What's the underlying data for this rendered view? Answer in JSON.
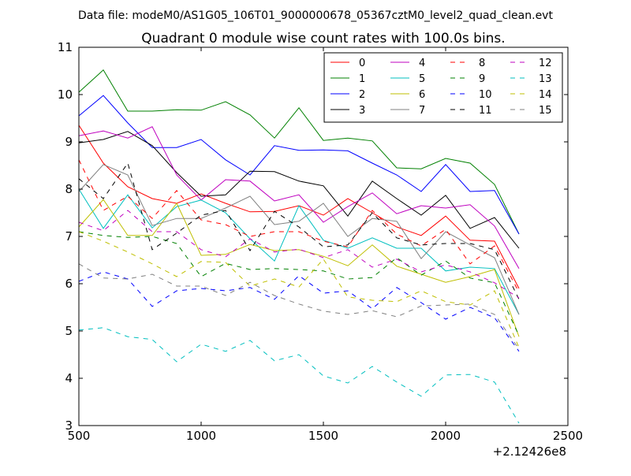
{
  "header": {
    "data_file": "Data file: modeM0/AS1G05_106T01_9000000678_05367cztM0_level2_quad_clean.evt"
  },
  "chart_data": {
    "type": "line",
    "title": "Quadrant 0 module wise count rates with 100.0s bins.",
    "xlabel": "",
    "ylabel": "",
    "x_offset_label": "+2.12426e8",
    "xlim": [
      500,
      2500
    ],
    "ylim": [
      3,
      11
    ],
    "xticks": [
      "500",
      "1000",
      "1500",
      "2000",
      "2500"
    ],
    "yticks": [
      "3",
      "4",
      "5",
      "6",
      "7",
      "8",
      "9",
      "10",
      "11"
    ],
    "grid": false,
    "legend_position": "top-right",
    "x": [
      500,
      600,
      700,
      800,
      900,
      1000,
      1100,
      1200,
      1300,
      1400,
      1500,
      1600,
      1700,
      1800,
      1900,
      2000,
      2100,
      2200,
      2300
    ],
    "series": [
      {
        "name": "0",
        "color": "#ff0000",
        "dash": "solid",
        "values": [
          9.35,
          8.55,
          8.05,
          7.8,
          7.7,
          7.9,
          7.7,
          7.52,
          7.53,
          7.65,
          7.45,
          7.8,
          7.5,
          7.2,
          7.02,
          7.43,
          6.92,
          6.9,
          5.9
        ]
      },
      {
        "name": "1",
        "color": "#008000",
        "dash": "solid",
        "values": [
          10.05,
          10.52,
          9.65,
          9.65,
          9.68,
          9.67,
          9.85,
          9.57,
          9.08,
          9.72,
          9.03,
          9.08,
          9.02,
          8.45,
          8.43,
          8.65,
          8.55,
          8.1,
          7.05
        ]
      },
      {
        "name": "2",
        "color": "#0000ff",
        "dash": "solid",
        "values": [
          9.55,
          9.98,
          9.4,
          8.88,
          8.88,
          9.05,
          8.62,
          8.3,
          8.92,
          8.82,
          8.83,
          8.81,
          8.55,
          8.3,
          7.95,
          8.52,
          7.95,
          7.97,
          7.05
        ]
      },
      {
        "name": "3",
        "color": "#000000",
        "dash": "solid",
        "values": [
          8.98,
          9.05,
          9.22,
          8.92,
          8.35,
          7.85,
          7.88,
          8.38,
          8.37,
          8.17,
          8.07,
          7.43,
          8.17,
          7.8,
          7.45,
          7.87,
          7.17,
          7.4,
          6.75
        ]
      },
      {
        "name": "4",
        "color": "#bf00bf",
        "dash": "solid",
        "values": [
          9.13,
          9.23,
          9.08,
          9.32,
          8.3,
          7.77,
          8.2,
          8.17,
          7.75,
          7.88,
          7.3,
          7.63,
          7.92,
          7.48,
          7.65,
          7.6,
          7.67,
          7.22,
          6.32
        ]
      },
      {
        "name": "5",
        "color": "#00bfbf",
        "dash": "solid",
        "values": [
          8.0,
          7.17,
          7.88,
          7.18,
          7.63,
          7.77,
          7.5,
          6.95,
          6.48,
          7.65,
          6.92,
          6.75,
          6.97,
          6.75,
          6.75,
          6.27,
          6.35,
          6.32,
          5.35
        ]
      },
      {
        "name": "6",
        "color": "#bfbf00",
        "dash": "solid",
        "values": [
          7.2,
          7.78,
          7.02,
          7.02,
          7.7,
          6.6,
          6.62,
          6.83,
          6.7,
          6.72,
          6.58,
          6.38,
          6.82,
          6.37,
          6.2,
          6.03,
          6.15,
          6.3,
          4.88
        ]
      },
      {
        "name": "7",
        "color": "#808080",
        "dash": "solid",
        "values": [
          7.95,
          8.52,
          8.3,
          7.23,
          7.38,
          7.38,
          7.6,
          7.85,
          7.25,
          7.32,
          7.7,
          7.0,
          7.38,
          7.32,
          6.53,
          7.1,
          6.82,
          6.55,
          5.35
        ]
      },
      {
        "name": "8",
        "color": "#ff0000",
        "dash": "dashed",
        "values": [
          8.62,
          7.55,
          7.85,
          7.38,
          7.97,
          7.35,
          7.25,
          7.0,
          7.1,
          7.1,
          6.9,
          6.78,
          7.55,
          7.05,
          6.8,
          7.15,
          6.42,
          6.8,
          5.82
        ]
      },
      {
        "name": "9",
        "color": "#008000",
        "dash": "dashed",
        "values": [
          7.1,
          7.02,
          6.98,
          7.0,
          6.85,
          6.15,
          6.43,
          6.3,
          6.32,
          6.3,
          6.27,
          6.1,
          6.13,
          6.55,
          6.18,
          6.48,
          6.12,
          6.02,
          4.9
        ]
      },
      {
        "name": "10",
        "color": "#0000ff",
        "dash": "dashed",
        "values": [
          6.05,
          6.25,
          6.1,
          5.52,
          5.85,
          5.9,
          5.85,
          5.92,
          5.67,
          6.17,
          5.8,
          5.85,
          5.47,
          5.92,
          5.6,
          5.25,
          5.5,
          5.28,
          4.57
        ]
      },
      {
        "name": "11",
        "color": "#000000",
        "dash": "dashed",
        "values": [
          8.22,
          7.8,
          8.55,
          6.72,
          7.07,
          7.45,
          7.55,
          6.7,
          7.53,
          7.2,
          6.78,
          6.82,
          7.5,
          6.97,
          6.82,
          6.85,
          6.85,
          6.72,
          5.67
        ]
      },
      {
        "name": "12",
        "color": "#bf00bf",
        "dash": "dashed",
        "values": [
          7.3,
          7.12,
          7.55,
          7.1,
          7.1,
          6.72,
          6.57,
          6.95,
          6.67,
          6.73,
          6.55,
          6.72,
          6.35,
          6.52,
          6.25,
          6.4,
          6.25,
          6.02,
          5.7
        ]
      },
      {
        "name": "13",
        "color": "#00bfbf",
        "dash": "dashed",
        "values": [
          5.02,
          5.07,
          4.88,
          4.82,
          4.35,
          4.72,
          4.57,
          4.8,
          4.37,
          4.5,
          4.05,
          3.9,
          4.25,
          3.92,
          3.62,
          4.07,
          4.08,
          3.92,
          3.05
        ]
      },
      {
        "name": "14",
        "color": "#bfbf00",
        "dash": "dashed",
        "values": [
          7.1,
          6.9,
          6.67,
          6.42,
          6.15,
          6.47,
          6.45,
          5.95,
          6.1,
          5.93,
          6.52,
          5.72,
          5.65,
          5.62,
          5.85,
          5.62,
          5.55,
          5.85,
          4.65
        ]
      },
      {
        "name": "15",
        "color": "#808080",
        "dash": "dashed",
        "values": [
          6.42,
          6.12,
          6.1,
          6.2,
          5.95,
          5.95,
          5.75,
          6.03,
          5.75,
          5.57,
          5.42,
          5.35,
          5.43,
          5.3,
          5.53,
          5.55,
          5.57,
          5.35,
          4.62
        ]
      }
    ]
  }
}
